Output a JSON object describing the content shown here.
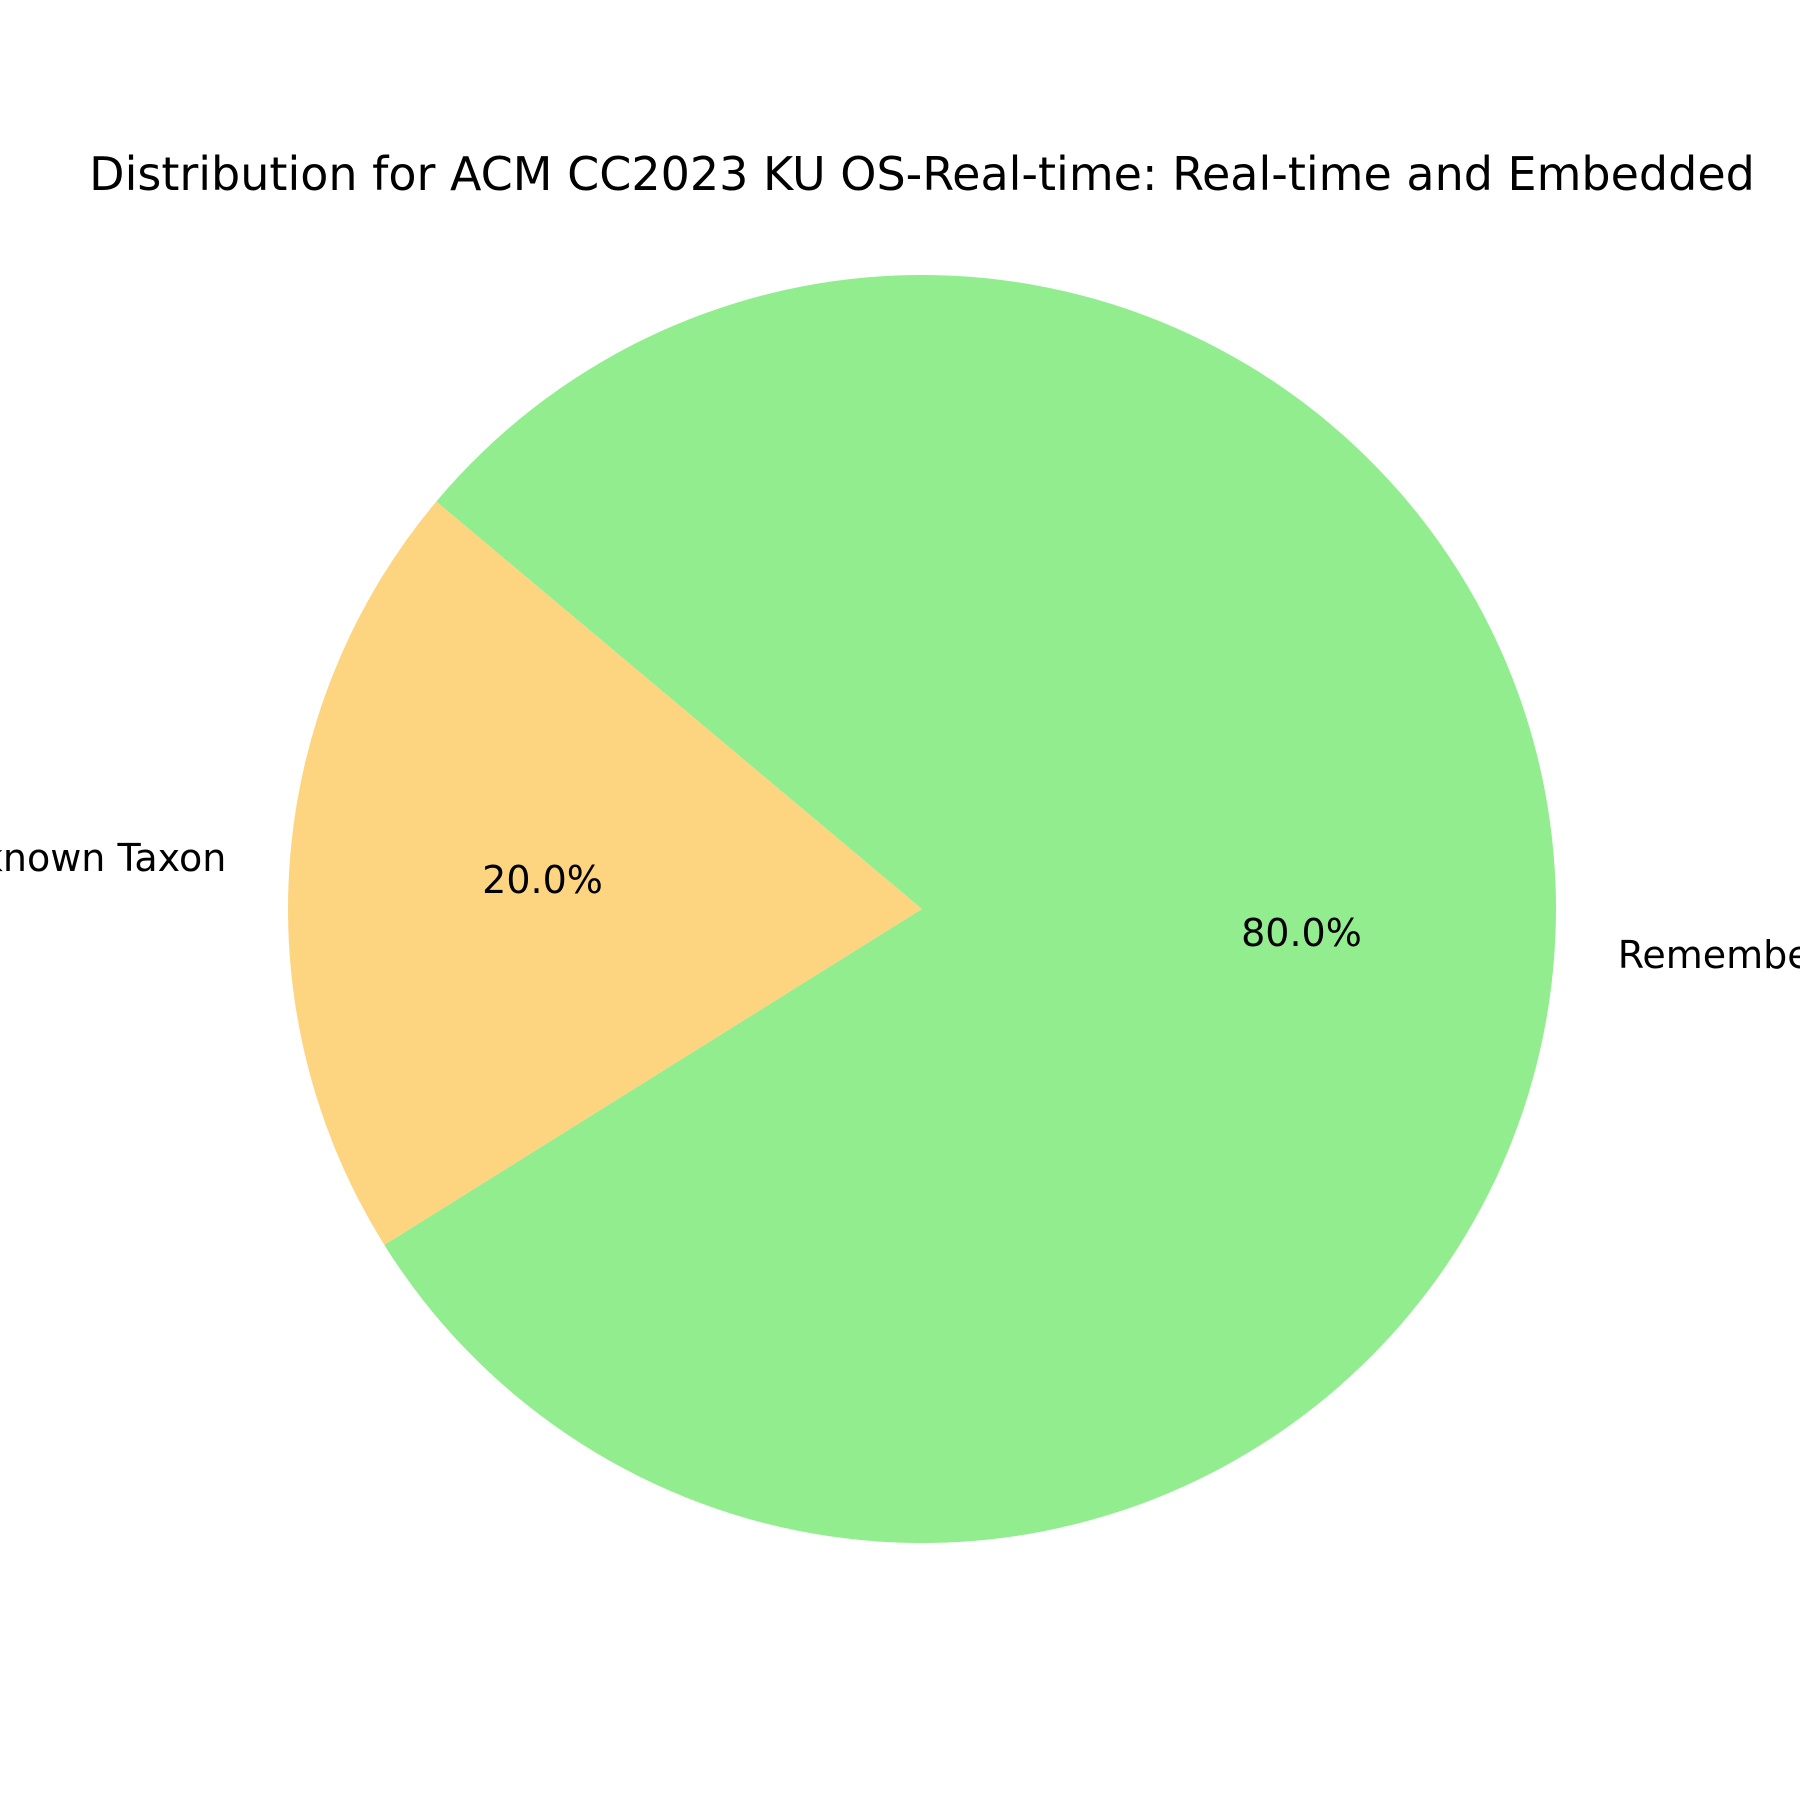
{
  "chart_data": {
    "type": "pie",
    "title": "Distribution for ACM CC2023 KU OS-Real-time: Real-time and Embedded",
    "slices": [
      {
        "label": "Unknown Taxon",
        "value": 20.0,
        "pct_label": "20.0%",
        "color": "#fdd581"
      },
      {
        "label": "Remember Taxon",
        "value": 80.0,
        "pct_label": "80.0%",
        "color": "#92ed8f"
      }
    ],
    "start_angle_deg": 140,
    "direction": "counterclockwise"
  }
}
